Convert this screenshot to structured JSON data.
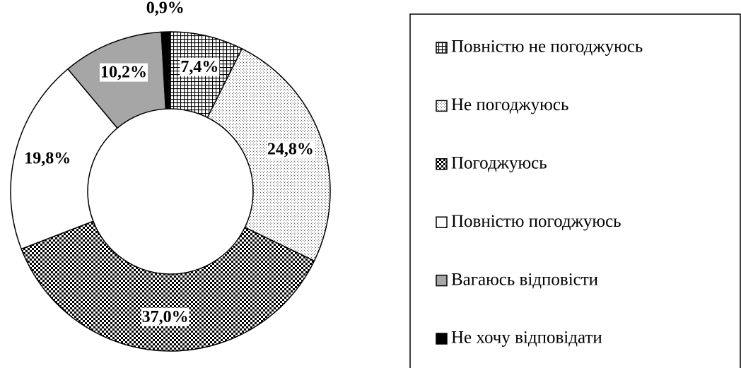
{
  "chart_data": {
    "type": "donut",
    "categories": [
      "Повністю не погоджуюсь",
      "Не погоджуюсь",
      "Погоджуюсь",
      "Повністю погоджуюсь",
      "Вагаюсь відповісти",
      "Не хочу відповідати"
    ],
    "values": [
      7.4,
      24.8,
      37.0,
      19.8,
      10.2,
      0.9
    ],
    "value_labels": [
      "7,4%",
      "24,8%",
      "37,0%",
      "19,8%",
      "10,2%",
      "0,9%"
    ],
    "colors": [
      "#ffffff",
      "#ffffff",
      "#ffffff",
      "#ffffff",
      "#a6a6a6",
      "#000000"
    ],
    "legend": "right"
  }
}
